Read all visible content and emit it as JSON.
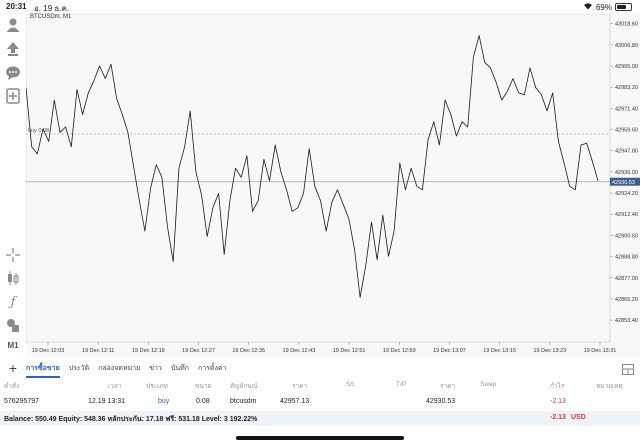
{
  "status": {
    "time": "20:31",
    "date": "อ. 19 ธ.ค.",
    "battery": "69%",
    "battery_level": 0.69
  },
  "sidebar": {
    "items": [
      {
        "icon": "accounts-icon"
      },
      {
        "icon": "trade-icon"
      },
      {
        "icon": "chat-icon"
      },
      {
        "icon": "new-order-icon"
      },
      {
        "icon": "crosshair-icon"
      },
      {
        "icon": "candles-icon"
      },
      {
        "icon": "indicators-icon"
      },
      {
        "icon": "objects-icon"
      }
    ],
    "timeframe": "M1"
  },
  "chart": {
    "symbol": "BTCUSDm, M1",
    "trade_label": "buy 0.08",
    "current_price_label": "42930.53",
    "colors": {
      "line": "#1a1a1a",
      "bid_line": "#9aa6b4",
      "trade_line": "#b0b0b0",
      "price_tag": "#3e5f8a",
      "background": "#f9f7f7"
    }
  },
  "chart_data": {
    "type": "line",
    "title": "",
    "xlabel": "",
    "ylabel": "",
    "ylim": [
      42841.2,
      43024.0
    ],
    "y_ticks": [
      "43018.60",
      "43006.80",
      "42995.00",
      "42983.20",
      "42971.40",
      "42959.60",
      "42947.80",
      "42936.00",
      "42924.20",
      "42912.40",
      "42900.60",
      "42888.80",
      "42877.00",
      "42865.20",
      "42853.40"
    ],
    "x_ticks": [
      "19 Dec 12:03",
      "19 Dec 12:11",
      "19 Dec 12:19",
      "19 Dec 12:27",
      "19 Dec 12:35",
      "19 Dec 12:43",
      "19 Dec 12:51",
      "19 Dec 12:59",
      "19 Dec 13:07",
      "19 Dec 13:15",
      "19 Dec 13:23",
      "19 Dec 13:31"
    ],
    "trade_price": 42957.13,
    "bid_price": 42930.53,
    "series": [
      {
        "values": [
          42983,
          42950,
          42946,
          42960,
          42953,
          42976,
          42958,
          42961,
          42950,
          42982,
          42968,
          42980,
          42987,
          42995,
          42988,
          42996,
          42977,
          42968,
          42958,
          42939,
          42920,
          42903,
          42927,
          42940,
          42933,
          42905,
          42886,
          42938,
          42950,
          42970,
          42936,
          42923,
          42900,
          42916,
          42924,
          42890,
          42920,
          42938,
          42933,
          42945,
          42914,
          42920,
          42943,
          42931,
          42951,
          42936,
          42926,
          42914,
          42916,
          42924,
          42949,
          42928,
          42920,
          42903,
          42919,
          42926,
          42918,
          42910,
          42893,
          42866,
          42884,
          42908,
          42887,
          42912,
          42889,
          42903,
          42941,
          42926,
          42938,
          42928,
          42926,
          42954,
          42964,
          42951,
          42976,
          42968,
          42956,
          42964,
          42961,
          43000,
          43012,
          42997,
          42994,
          42986,
          42976,
          42981,
          42988,
          42980,
          42979,
          42994,
          42983,
          42979,
          42970,
          42980,
          42953,
          42941,
          42928,
          42926,
          42951,
          42952,
          42942,
          42931
        ]
      }
    ]
  },
  "tabs": [
    "การซื้อขาย",
    "ประวัติ",
    "กล่องจดหมาย",
    "ข่าว",
    "บันทึก",
    "การตั้งค่า"
  ],
  "table": {
    "headers": [
      "คำสั่ง",
      "เวลา",
      "ประเภท",
      "ขนาด",
      "สัญลักษณ์",
      "ราคา",
      "S/L",
      "T/P",
      "ราคา",
      "Swap",
      "กำไร",
      "หมายเหตุ"
    ],
    "row": {
      "order": "576295797",
      "time": "12.19 13:31",
      "type": "buy",
      "volume": "0.08",
      "symbol": "btcusdm",
      "open_price": "42957.13",
      "current_price": "42930.53",
      "profit": "-2.13"
    }
  },
  "balance": {
    "text": "Balance: 550.49 Equity: 548.36 หลักประกัน: 17.18 ฟรี: 531.18 Level: 3 192.22%",
    "profit": "-2.13",
    "currency": "USD"
  }
}
